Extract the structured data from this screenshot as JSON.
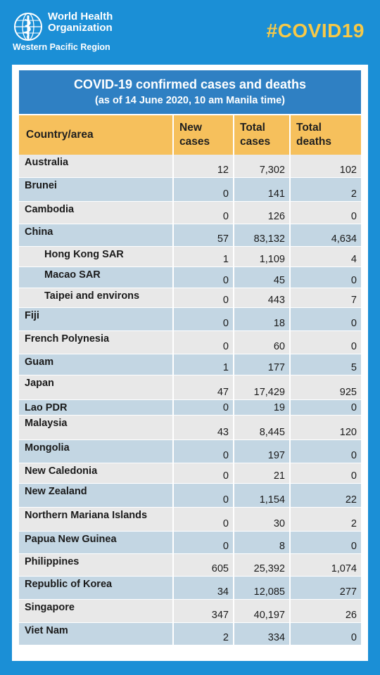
{
  "header": {
    "org_line1": "World Health",
    "org_line2": "Organization",
    "region": "Western Pacific Region",
    "hashtag": "#COVID19"
  },
  "card": {
    "title": "COVID-19 confirmed cases and deaths",
    "subtitle": "(as of 14 June 2020, 10 am Manila time)"
  },
  "table": {
    "headers": [
      "Country/area",
      "New cases",
      "Total cases",
      "Total deaths"
    ],
    "rows": [
      {
        "name": "Australia",
        "new": "12",
        "total": "7,302",
        "deaths": "102",
        "sub": false
      },
      {
        "name": "Brunei",
        "new": "0",
        "total": "141",
        "deaths": "2",
        "sub": false
      },
      {
        "name": "Cambodia",
        "new": "0",
        "total": "126",
        "deaths": "0",
        "sub": false
      },
      {
        "name": "China",
        "new": "57",
        "total": "83,132",
        "deaths": "4,634",
        "sub": false
      },
      {
        "name": "Hong Kong SAR",
        "new": "1",
        "total": "1,109",
        "deaths": "4",
        "sub": true
      },
      {
        "name": "Macao SAR",
        "new": "0",
        "total": "45",
        "deaths": "0",
        "sub": true
      },
      {
        "name": "Taipei and environs",
        "new": "0",
        "total": "443",
        "deaths": "7",
        "sub": true
      },
      {
        "name": "Fiji",
        "new": "0",
        "total": "18",
        "deaths": "0",
        "sub": false
      },
      {
        "name": "French Polynesia",
        "new": "0",
        "total": "60",
        "deaths": "0",
        "sub": false
      },
      {
        "name": "Guam",
        "new": "1",
        "total": "177",
        "deaths": "5",
        "sub": false
      },
      {
        "name": "Japan",
        "new": "47",
        "total": "17,429",
        "deaths": "925",
        "sub": false
      },
      {
        "name": "Lao PDR",
        "new": "0",
        "total": "19",
        "deaths": "0",
        "sub": false
      },
      {
        "name": "Malaysia",
        "new": "43",
        "total": "8,445",
        "deaths": "120",
        "sub": false
      },
      {
        "name": "Mongolia",
        "new": "0",
        "total": "197",
        "deaths": "0",
        "sub": false
      },
      {
        "name": "New Caledonia",
        "new": "0",
        "total": "21",
        "deaths": "0",
        "sub": false
      },
      {
        "name": "New Zealand",
        "new": "0",
        "total": "1,154",
        "deaths": "22",
        "sub": false
      },
      {
        "name": "Northern Mariana Islands",
        "new": "0",
        "total": "30",
        "deaths": "2",
        "sub": false
      },
      {
        "name": "Papua New Guinea",
        "new": "0",
        "total": "8",
        "deaths": "0",
        "sub": false
      },
      {
        "name": "Philippines",
        "new": "605",
        "total": "25,392",
        "deaths": "1,074",
        "sub": false
      },
      {
        "name": "Republic of Korea",
        "new": "34",
        "total": "12,085",
        "deaths": "277",
        "sub": false
      },
      {
        "name": "Singapore",
        "new": "347",
        "total": "40,197",
        "deaths": "26",
        "sub": false
      },
      {
        "name": "Viet Nam",
        "new": "2",
        "total": "334",
        "deaths": "0",
        "sub": false
      }
    ]
  },
  "colors": {
    "background": "#1b8fd6",
    "title_bar": "#2f80c3",
    "header_row": "#f6c05c",
    "hashtag": "#f7c948",
    "row_gray": "#e8e8e8",
    "row_blue": "#c3d6e3"
  },
  "icons": {
    "logo": "who-emblem-icon"
  }
}
